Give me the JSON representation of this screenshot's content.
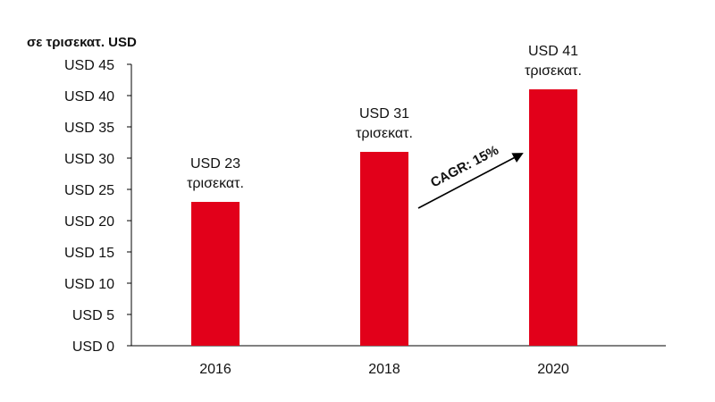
{
  "chart_data": {
    "type": "bar",
    "unit_label": "σε τρισεκατ. USD",
    "categories": [
      "2016",
      "2018",
      "2020"
    ],
    "values": [
      23,
      31,
      41
    ],
    "data_labels": [
      [
        "USD 23",
        "τρισεκατ."
      ],
      [
        "USD 31",
        "τρισεκατ."
      ],
      [
        "USD 41",
        "τρισεκατ."
      ]
    ],
    "y_ticks": [
      0,
      5,
      10,
      15,
      20,
      25,
      30,
      35,
      40,
      45
    ],
    "y_tick_labels": [
      "USD 0",
      "USD 5",
      "USD 10",
      "USD 15",
      "USD 20",
      "USD 25",
      "USD 30",
      "USD 35",
      "USD 40",
      "USD 45"
    ],
    "ylim": [
      0,
      45
    ],
    "grid": false,
    "bar_color": "#e2001a",
    "annotation": {
      "text": "CAGR: 15%",
      "from_category": "2018",
      "to_category": "2020"
    }
  }
}
